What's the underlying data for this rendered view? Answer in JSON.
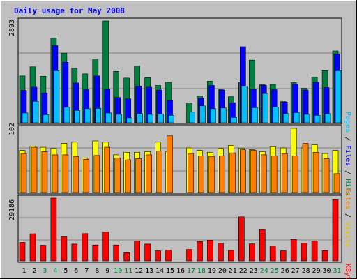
{
  "title": "Daily usage for May 2008",
  "chart_data": [
    {
      "type": "bar",
      "panel": "hits",
      "categories": [
        "1",
        "2",
        "3",
        "4",
        "5",
        "6",
        "7",
        "8",
        "9",
        "10",
        "11",
        "12",
        "13",
        "14",
        "15",
        "16",
        "17",
        "18",
        "19",
        "20",
        "21",
        "22",
        "23",
        "24",
        "25",
        "26",
        "27",
        "28",
        "29",
        "30",
        "31"
      ],
      "max_label": "2893",
      "ylim": [
        0,
        2893
      ],
      "side_labels": [
        "Pages",
        "Files",
        "Hits"
      ],
      "series": [
        {
          "name": "Hits",
          "color": "#008040",
          "values": [
            1330,
            1590,
            1320,
            2410,
            1980,
            1550,
            1390,
            1810,
            2893,
            1460,
            1270,
            1610,
            1280,
            1060,
            1150,
            0,
            560,
            760,
            1180,
            940,
            740,
            1140,
            1780,
            1080,
            1090,
            600,
            1140,
            980,
            1300,
            1480,
            2040
          ]
        },
        {
          "name": "Files",
          "color": "#0000ff",
          "values": [
            920,
            1010,
            840,
            2190,
            1720,
            1130,
            940,
            1330,
            950,
            720,
            680,
            1040,
            1010,
            930,
            630,
            0,
            0,
            700,
            1060,
            930,
            570,
            2160,
            950,
            1060,
            940,
            590,
            1100,
            930,
            1150,
            1000,
            1950
          ]
        },
        {
          "name": "Pages",
          "color": "#00c0ff",
          "values": [
            280,
            610,
            230,
            1480,
            440,
            350,
            400,
            410,
            280,
            240,
            140,
            260,
            240,
            250,
            210,
            0,
            310,
            480,
            400,
            420,
            150,
            1040,
            430,
            830,
            450,
            260,
            290,
            240,
            210,
            260,
            1480
          ]
        }
      ]
    },
    {
      "type": "bar",
      "panel": "visits",
      "categories": [
        "1",
        "2",
        "3",
        "4",
        "5",
        "6",
        "7",
        "8",
        "9",
        "10",
        "11",
        "12",
        "13",
        "14",
        "15",
        "16",
        "17",
        "18",
        "19",
        "20",
        "21",
        "22",
        "23",
        "24",
        "25",
        "26",
        "27",
        "28",
        "29",
        "30",
        "31"
      ],
      "max_label": "102",
      "ylim": [
        0,
        102
      ],
      "side_labels": [
        "Sites",
        "Visits"
      ],
      "series": [
        {
          "name": "Visits",
          "color": "#ffff00",
          "values": [
            67,
            74,
            72,
            70,
            78,
            80,
            55,
            82,
            80,
            60,
            64,
            64,
            65,
            80,
            65,
            0,
            71,
            67,
            64,
            70,
            75,
            70,
            68,
            65,
            73,
            71,
            102,
            71,
            76,
            62,
            67
          ]
        },
        {
          "name": "Sites",
          "color": "#ff8000",
          "values": [
            62,
            72,
            65,
            60,
            60,
            57,
            53,
            59,
            72,
            55,
            52,
            54,
            60,
            66,
            90,
            0,
            62,
            58,
            57,
            58,
            63,
            68,
            67,
            60,
            58,
            62,
            58,
            78,
            64,
            54,
            30
          ]
        }
      ]
    },
    {
      "type": "bar",
      "panel": "kbytes",
      "categories": [
        "1",
        "2",
        "3",
        "4",
        "5",
        "6",
        "7",
        "8",
        "9",
        "10",
        "11",
        "12",
        "13",
        "14",
        "15",
        "16",
        "17",
        "18",
        "19",
        "20",
        "21",
        "22",
        "23",
        "24",
        "25",
        "26",
        "27",
        "28",
        "29",
        "30",
        "31"
      ],
      "max_label": "29186",
      "ylim": [
        0,
        29186
      ],
      "side_labels": [
        "KBytes"
      ],
      "series": [
        {
          "name": "KBytes",
          "color": "#ff0000",
          "values": [
            8600,
            12600,
            7300,
            29186,
            11200,
            7800,
            12700,
            7400,
            13500,
            7400,
            3800,
            9300,
            7800,
            4700,
            5000,
            0,
            5300,
            9000,
            9600,
            8200,
            4900,
            20500,
            7900,
            14600,
            6900,
            4700,
            10000,
            8300,
            9300,
            4800,
            28400
          ]
        }
      ]
    }
  ],
  "weekend_days": [
    "3",
    "4",
    "10",
    "11",
    "17",
    "18",
    "24",
    "25",
    "31"
  ],
  "colors": {
    "background": "#c0c0c0",
    "title": "#0000ff",
    "weekday_label": "#000000",
    "weekend_label": "#008040",
    "grid": "#808080"
  }
}
